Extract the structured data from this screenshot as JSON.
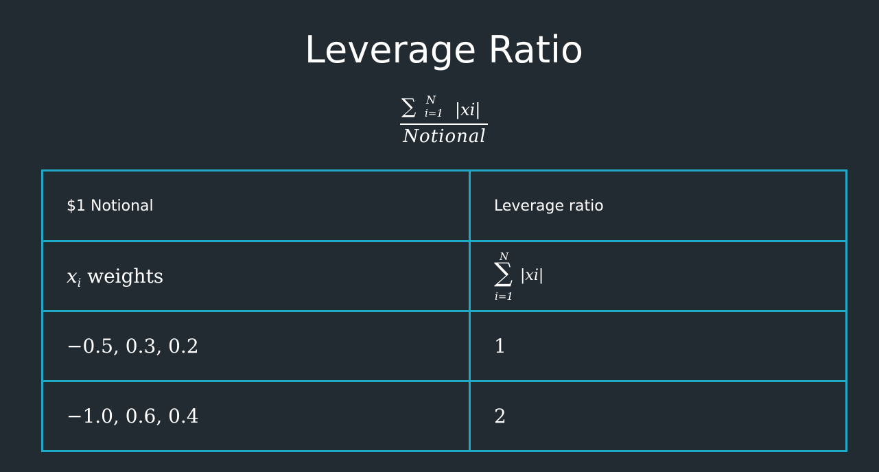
{
  "slide": {
    "title": "Leverage Ratio"
  },
  "formula": {
    "sum_symbol": "∑",
    "upper_limit": "N",
    "lower_limit": "i=1",
    "summand": "|xi|",
    "denominator": "Notional"
  },
  "table": {
    "header": {
      "left": "$1 Notional",
      "right": "Leverage ratio"
    },
    "row_1": {
      "left_var": "x",
      "left_sub": "i",
      "left_text": " weights",
      "right_sum_symbol": "∑",
      "right_upper": "N",
      "right_lower": "i=1",
      "right_summand": "|xi|"
    },
    "rows": [
      {
        "weights": "−0.5, 0.3, 0.2",
        "ratio": "1"
      },
      {
        "weights": "−1.0, 0.6, 0.4",
        "ratio": "2"
      }
    ]
  },
  "colors": {
    "background": "#232b32",
    "table_border": "#1fa9c7",
    "text": "#ffffff"
  }
}
